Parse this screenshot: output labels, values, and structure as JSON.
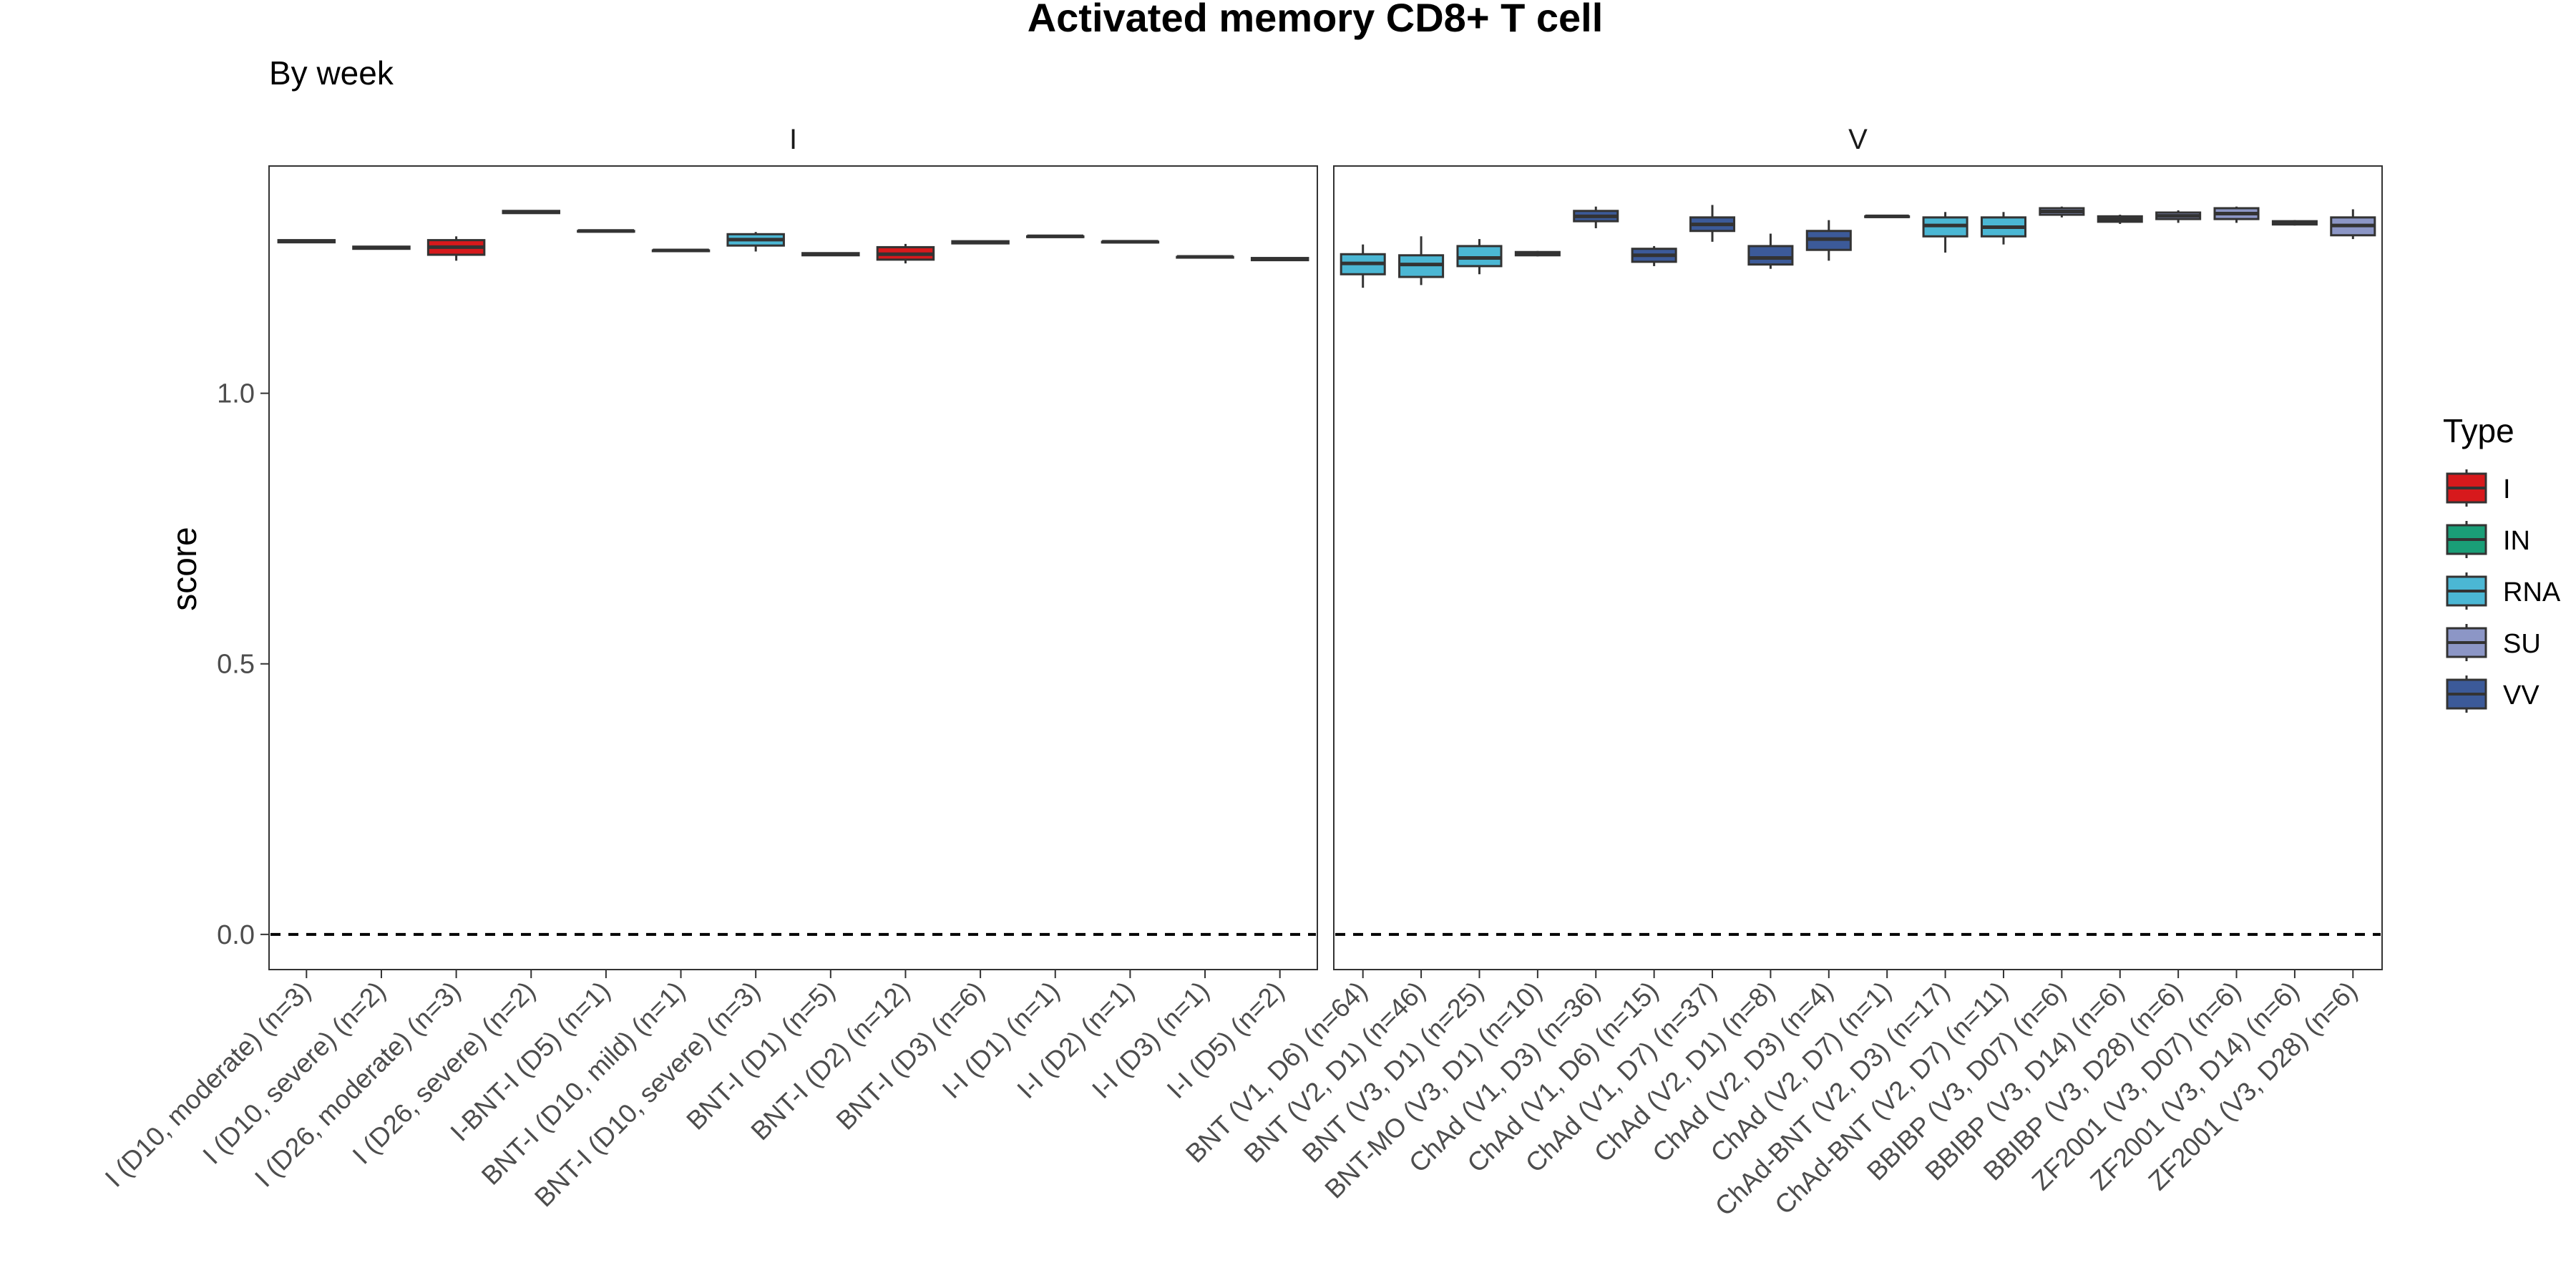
{
  "chart_data": {
    "type": "boxplot",
    "title": "Activated memory CD8+ T cell",
    "subtitle": "By week",
    "ylabel": "score",
    "xlabel": "",
    "ylim": [
      -0.065,
      1.42
    ],
    "yticks": [
      0.0,
      0.5,
      1.0
    ],
    "ytick_labels": [
      "0.0",
      "0.5",
      "1.0"
    ],
    "reference_line": 0.0,
    "grid": false,
    "legend": {
      "title": "Type",
      "position": "right",
      "items": [
        {
          "label": "I",
          "color": "#D7191C"
        },
        {
          "label": "IN",
          "color": "#1A9E77"
        },
        {
          "label": "RNA",
          "color": "#4BB7D4"
        },
        {
          "label": "SU",
          "color": "#8C96C6"
        },
        {
          "label": "VV",
          "color": "#3C5A99"
        }
      ]
    },
    "colors": {
      "I": "#D7191C",
      "IN": "#1A9E77",
      "RNA": "#4BB7D4",
      "SU": "#8C96C6",
      "VV": "#3C5A99"
    },
    "panels": [
      {
        "name": "I",
        "groups": [
          {
            "label": "I (D10, moderate) (n=3)",
            "type": "I",
            "q1": 1.279,
            "median": 1.281,
            "q3": 1.283,
            "whisker_low": 1.278,
            "whisker_high": 1.284
          },
          {
            "label": "I (D10, severe) (n=2)",
            "type": "I",
            "q1": 1.267,
            "median": 1.269,
            "q3": 1.271,
            "whisker_low": 1.266,
            "whisker_high": 1.272
          },
          {
            "label": "I (D26, moderate) (n=3)",
            "type": "I",
            "q1": 1.256,
            "median": 1.27,
            "q3": 1.283,
            "whisker_low": 1.245,
            "whisker_high": 1.29
          },
          {
            "label": "I (D26, severe) (n=2)",
            "type": "I",
            "q1": 1.333,
            "median": 1.335,
            "q3": 1.337,
            "whisker_low": 1.332,
            "whisker_high": 1.338
          },
          {
            "label": "I-BNT-I (D5) (n=1)",
            "type": "I",
            "q1": 1.3,
            "median": 1.3,
            "q3": 1.3,
            "whisker_low": 1.3,
            "whisker_high": 1.3
          },
          {
            "label": "BNT-I (D10, mild) (n=1)",
            "type": "RNA",
            "q1": 1.264,
            "median": 1.264,
            "q3": 1.264,
            "whisker_low": 1.264,
            "whisker_high": 1.264
          },
          {
            "label": "BNT-I (D10, severe) (n=3)",
            "type": "RNA",
            "q1": 1.273,
            "median": 1.284,
            "q3": 1.294,
            "whisker_low": 1.262,
            "whisker_high": 1.298
          },
          {
            "label": "BNT-I (D1) (n=5)",
            "type": "RNA",
            "q1": 1.255,
            "median": 1.257,
            "q3": 1.259,
            "whisker_low": 1.254,
            "whisker_high": 1.26
          },
          {
            "label": "BNT-I (D2) (n=12)",
            "type": "I",
            "q1": 1.247,
            "median": 1.257,
            "q3": 1.27,
            "whisker_low": 1.24,
            "whisker_high": 1.276
          },
          {
            "label": "BNT-I (D3) (n=6)",
            "type": "RNA",
            "q1": 1.277,
            "median": 1.279,
            "q3": 1.281,
            "whisker_low": 1.276,
            "whisker_high": 1.282
          },
          {
            "label": "I-I (D1) (n=1)",
            "type": "I",
            "q1": 1.29,
            "median": 1.29,
            "q3": 1.29,
            "whisker_low": 1.29,
            "whisker_high": 1.29
          },
          {
            "label": "I-I (D2) (n=1)",
            "type": "I",
            "q1": 1.28,
            "median": 1.28,
            "q3": 1.28,
            "whisker_low": 1.28,
            "whisker_high": 1.28
          },
          {
            "label": "I-I (D3) (n=1)",
            "type": "I",
            "q1": 1.252,
            "median": 1.252,
            "q3": 1.252,
            "whisker_low": 1.252,
            "whisker_high": 1.252
          },
          {
            "label": "I-I (D5) (n=2)",
            "type": "I",
            "q1": 1.246,
            "median": 1.248,
            "q3": 1.25,
            "whisker_low": 1.245,
            "whisker_high": 1.251
          }
        ]
      },
      {
        "name": "V",
        "groups": [
          {
            "label": "BNT (V1, D6) (n=64)",
            "type": "RNA",
            "q1": 1.22,
            "median": 1.24,
            "q3": 1.257,
            "whisker_low": 1.195,
            "whisker_high": 1.275
          },
          {
            "label": "BNT (V2, D1) (n=46)",
            "type": "RNA",
            "q1": 1.215,
            "median": 1.238,
            "q3": 1.255,
            "whisker_low": 1.2,
            "whisker_high": 1.29
          },
          {
            "label": "BNT (V3, D1) (n=25)",
            "type": "RNA",
            "q1": 1.235,
            "median": 1.25,
            "q3": 1.272,
            "whisker_low": 1.22,
            "whisker_high": 1.285
          },
          {
            "label": "BNT-MO (V3, D1) (n=10)",
            "type": "RNA",
            "q1": 1.255,
            "median": 1.258,
            "q3": 1.261,
            "whisker_low": 1.253,
            "whisker_high": 1.263
          },
          {
            "label": "ChAd (V1, D3) (n=36)",
            "type": "VV",
            "q1": 1.318,
            "median": 1.327,
            "q3": 1.337,
            "whisker_low": 1.305,
            "whisker_high": 1.345
          },
          {
            "label": "ChAd (V1, D6) (n=15)",
            "type": "VV",
            "q1": 1.243,
            "median": 1.255,
            "q3": 1.267,
            "whisker_low": 1.235,
            "whisker_high": 1.272
          },
          {
            "label": "ChAd (V1, D7) (n=37)",
            "type": "VV",
            "q1": 1.3,
            "median": 1.312,
            "q3": 1.325,
            "whisker_low": 1.28,
            "whisker_high": 1.348
          },
          {
            "label": "ChAd (V2, D1) (n=8)",
            "type": "VV",
            "q1": 1.238,
            "median": 1.25,
            "q3": 1.272,
            "whisker_low": 1.23,
            "whisker_high": 1.295
          },
          {
            "label": "ChAd (V2, D3) (n=4)",
            "type": "VV",
            "q1": 1.265,
            "median": 1.285,
            "q3": 1.3,
            "whisker_low": 1.245,
            "whisker_high": 1.32
          },
          {
            "label": "ChAd (V2, D7) (n=1)",
            "type": "VV",
            "q1": 1.327,
            "median": 1.327,
            "q3": 1.327,
            "whisker_low": 1.327,
            "whisker_high": 1.327
          },
          {
            "label": "ChAd-BNT (V2, D3) (n=17)",
            "type": "RNA",
            "q1": 1.29,
            "median": 1.31,
            "q3": 1.325,
            "whisker_low": 1.26,
            "whisker_high": 1.335
          },
          {
            "label": "ChAd-BNT (V2, D7) (n=11)",
            "type": "RNA",
            "q1": 1.29,
            "median": 1.307,
            "q3": 1.325,
            "whisker_low": 1.275,
            "whisker_high": 1.335
          },
          {
            "label": "BBIBP (V3, D07) (n=6)",
            "type": "SU",
            "q1": 1.33,
            "median": 1.336,
            "q3": 1.342,
            "whisker_low": 1.325,
            "whisker_high": 1.345
          },
          {
            "label": "BBIBP (V3, D14) (n=6)",
            "type": "SU",
            "q1": 1.317,
            "median": 1.322,
            "q3": 1.327,
            "whisker_low": 1.313,
            "whisker_high": 1.33
          },
          {
            "label": "BBIBP (V3, D28) (n=6)",
            "type": "SU",
            "q1": 1.322,
            "median": 1.328,
            "q3": 1.334,
            "whisker_low": 1.315,
            "whisker_high": 1.338
          },
          {
            "label": "ZF2001 (V3, D07) (n=6)",
            "type": "SU",
            "q1": 1.322,
            "median": 1.332,
            "q3": 1.342,
            "whisker_low": 1.315,
            "whisker_high": 1.345
          },
          {
            "label": "ZF2001 (V3, D14) (n=6)",
            "type": "SU",
            "q1": 1.312,
            "median": 1.315,
            "q3": 1.318,
            "whisker_low": 1.31,
            "whisker_high": 1.32
          },
          {
            "label": "ZF2001 (V3, D28) (n=6)",
            "type": "SU",
            "q1": 1.292,
            "median": 1.31,
            "q3": 1.325,
            "whisker_low": 1.285,
            "whisker_high": 1.34
          }
        ]
      }
    ]
  }
}
